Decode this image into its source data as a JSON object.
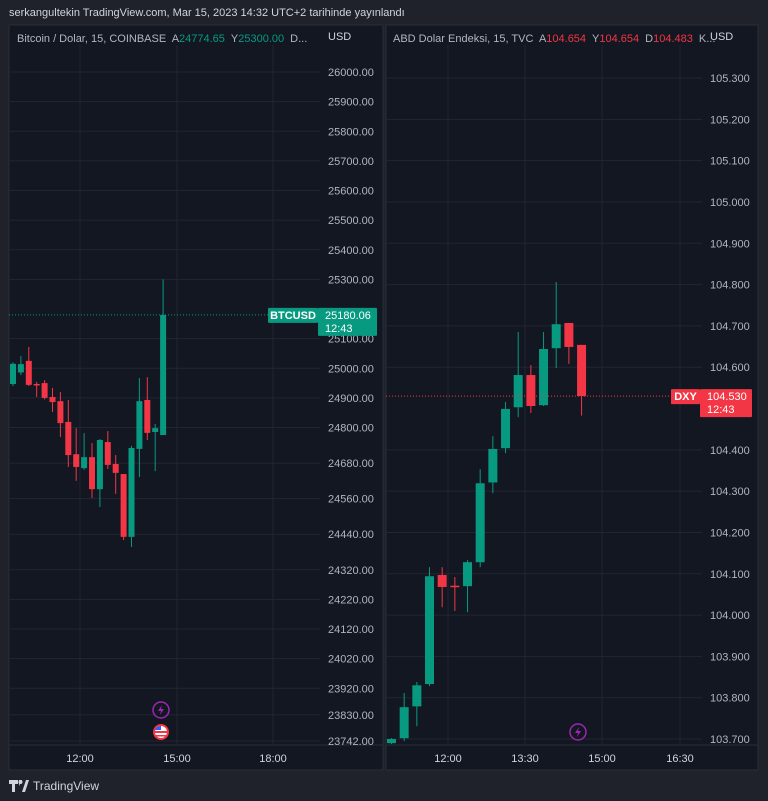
{
  "publish_line": "serkangultekin TradingView.com, Mar 15, 2023 14:32 UTC+2 tarihinde yayınlandı",
  "colors": {
    "up": "#089981",
    "down": "#f23645",
    "background": "#131722",
    "grid": "#232632",
    "accent_event": "#9c27b0"
  },
  "footer": {
    "logo_text": "TradingView"
  },
  "panes": [
    {
      "title": "Bitcoin / Dolar, 15, COINBASE",
      "ohlc_legend": [
        {
          "k": "A",
          "v": "24774.65"
        },
        {
          "k": "Y",
          "v": "25300.00"
        },
        {
          "k": "D...",
          "v": ""
        }
      ],
      "legend_color": "#089981",
      "currency": "USD",
      "price_ticks": [
        "26000.00",
        "25900.00",
        "25800.00",
        "25700.00",
        "25600.00",
        "25500.00",
        "25400.00",
        "25300.00",
        "25100.00",
        "25000.00",
        "24900.00",
        "24800.00",
        "24680.00",
        "24560.00",
        "24440.00",
        "24320.00",
        "24220.00",
        "24120.00",
        "24020.00",
        "23920.00",
        "23830.00",
        "23742.00"
      ],
      "time_ticks": [
        "12:00",
        "15:00",
        "18:00"
      ],
      "last_price": {
        "symbol": "BTCUSD",
        "value": "25180.06",
        "countdown": "12:43",
        "price": 25180.06,
        "color": "#089981"
      },
      "events": [
        "lightning-event-icon",
        "us-flag-event-icon"
      ],
      "chart_data": {
        "type": "candlestick",
        "ylim": [
          23742,
          26000
        ],
        "candles": [
          [
            24947,
            25020,
            24940,
            25015
          ],
          [
            24986,
            25041,
            24977,
            25014
          ],
          [
            25025,
            25072,
            24940,
            24944
          ],
          [
            24947,
            24954,
            24903,
            24945
          ],
          [
            24950,
            24960,
            24895,
            24900
          ],
          [
            24903,
            24934,
            24853,
            24886
          ],
          [
            24889,
            24920,
            24768,
            24815
          ],
          [
            24819,
            24893,
            24667,
            24707
          ],
          [
            24710,
            24798,
            24620,
            24667
          ],
          [
            24663,
            24781,
            24657,
            24700
          ],
          [
            24700,
            24748,
            24562,
            24592
          ],
          [
            24592,
            24761,
            24532,
            24758
          ],
          [
            24751,
            24788,
            24660,
            24674
          ],
          [
            24677,
            24707,
            24576,
            24647
          ],
          [
            24643,
            24643,
            24420,
            24431
          ],
          [
            24431,
            24738,
            24397,
            24731
          ],
          [
            24728,
            24967,
            24633,
            24889
          ],
          [
            24893,
            24970,
            24758,
            24782
          ],
          [
            24785,
            24812,
            24653,
            24798
          ],
          [
            24774.65,
            25300,
            24774.65,
            25180.06
          ]
        ]
      }
    },
    {
      "title": "ABD Dolar Endeksi, 15, TVC",
      "ohlc_legend": [
        {
          "k": "A",
          "v": "104.654"
        },
        {
          "k": "Y",
          "v": "104.654"
        },
        {
          "k": "D",
          "v": "104.483"
        },
        {
          "k": "K...",
          "v": ""
        }
      ],
      "legend_color": "#f23645",
      "currency": "USD",
      "price_ticks": [
        "105.300",
        "105.200",
        "105.100",
        "105.000",
        "104.900",
        "104.800",
        "104.700",
        "104.600",
        "104.400",
        "104.300",
        "104.200",
        "104.100",
        "104.000",
        "103.900",
        "103.800",
        "103.700"
      ],
      "time_ticks": [
        "12:00",
        "13:30",
        "15:00",
        "16:30"
      ],
      "last_price": {
        "symbol": "DXY",
        "value": "104.530",
        "countdown": "12:43",
        "price": 104.53,
        "color": "#f23645"
      },
      "events": [
        "lightning-event-icon"
      ],
      "chart_data": {
        "type": "candlestick",
        "ylim": [
          103.7,
          105.3
        ],
        "candles": [
          [
            103.69,
            103.702,
            103.688,
            103.7
          ],
          [
            103.702,
            103.811,
            103.695,
            103.777
          ],
          [
            103.779,
            103.838,
            103.731,
            103.83
          ],
          [
            103.833,
            104.116,
            103.828,
            104.094
          ],
          [
            104.097,
            104.116,
            104.019,
            104.068
          ],
          [
            104.071,
            104.092,
            104.01,
            104.068
          ],
          [
            104.07,
            104.133,
            104.007,
            104.128
          ],
          [
            104.128,
            104.353,
            104.116,
            104.319
          ],
          [
            104.321,
            104.433,
            104.295,
            104.402
          ],
          [
            104.404,
            104.516,
            104.392,
            104.499
          ],
          [
            104.503,
            104.685,
            104.479,
            104.581
          ],
          [
            104.581,
            104.605,
            104.489,
            104.506
          ],
          [
            104.508,
            104.685,
            104.506,
            104.644
          ],
          [
            104.646,
            104.806,
            104.598,
            104.704
          ],
          [
            104.707,
            104.707,
            104.608,
            104.649
          ],
          [
            104.654,
            104.654,
            104.483,
            104.53
          ]
        ]
      }
    }
  ]
}
